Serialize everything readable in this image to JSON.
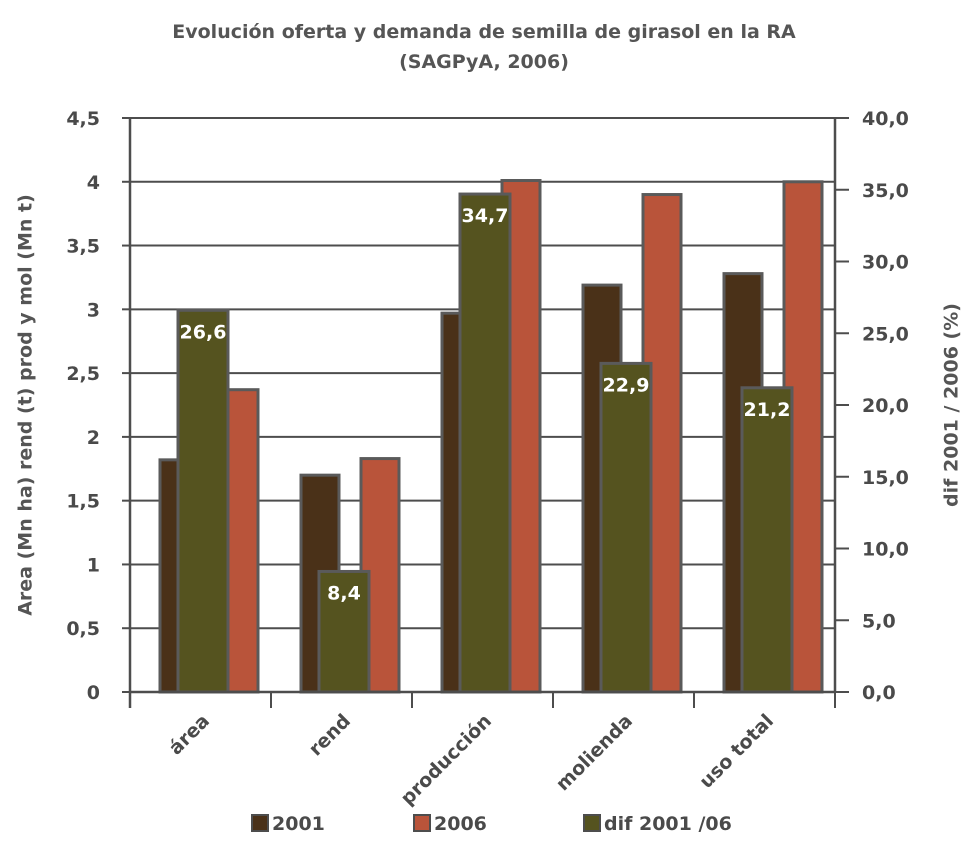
{
  "chart_data": {
    "type": "bar",
    "title": "Evolución oferta y demanda de semilla de girasol en la RA",
    "subtitle": "(SAGPyA, 2006)",
    "ylabel": "Area (Mn ha) rend (t) prod y mol (Mn t)",
    "y2label": "dif 2001 / 2006 (%)",
    "categories": [
      "área",
      "rend",
      "producción",
      "molienda",
      "uso total"
    ],
    "ylim": [
      0,
      4.5
    ],
    "y2lim": [
      0,
      40
    ],
    "y_ticks": [
      "0",
      "0,5",
      "1",
      "1,5",
      "2",
      "2,5",
      "3",
      "3,5",
      "4",
      "4,5"
    ],
    "y_tick_values": [
      0,
      0.5,
      1,
      1.5,
      2,
      2.5,
      3,
      3.5,
      4,
      4.5
    ],
    "y2_ticks": [
      "0,0",
      "5,0",
      "10,0",
      "15,0",
      "20,0",
      "25,0",
      "30,0",
      "35,0",
      "40,0"
    ],
    "y2_tick_values": [
      0,
      5,
      10,
      15,
      20,
      25,
      30,
      35,
      40
    ],
    "grid": true,
    "legend_position": "bottom",
    "series": [
      {
        "name": "2001",
        "axis": "left",
        "color": "#4a3118",
        "values": [
          1.82,
          1.7,
          2.97,
          3.19,
          3.28
        ]
      },
      {
        "name": "2006",
        "axis": "left",
        "color": "#b9543a",
        "values": [
          2.37,
          1.83,
          4.01,
          3.9,
          4.0
        ]
      },
      {
        "name": "dif 2001 /06",
        "axis": "right",
        "color": "#55531f",
        "values": [
          26.6,
          8.4,
          34.7,
          22.9,
          21.2
        ],
        "data_labels": [
          "26,6",
          "8,4",
          "34,7",
          "22,9",
          "21,2"
        ]
      }
    ]
  }
}
